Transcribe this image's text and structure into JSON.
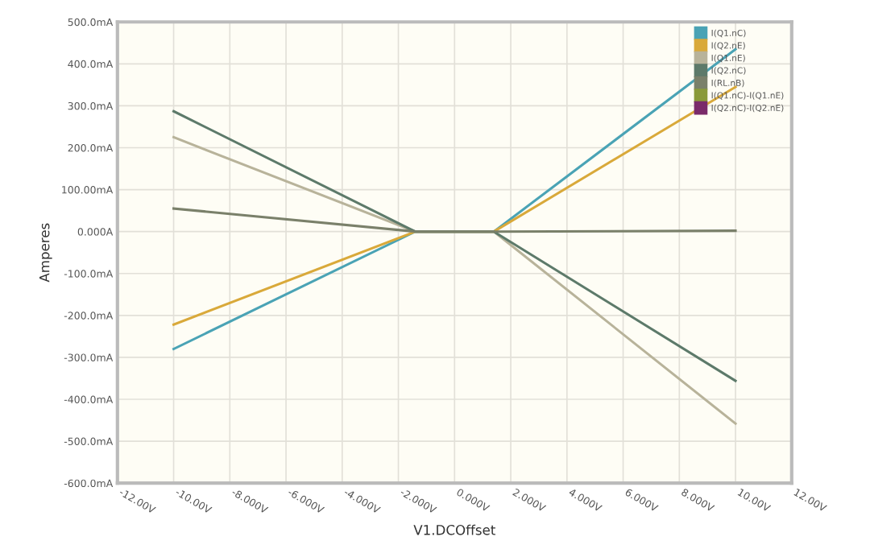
{
  "chart_data": {
    "type": "line",
    "xlabel": "V1.DCOffset",
    "ylabel": "Amperes",
    "x": [
      -10,
      -1.4,
      1.4,
      10
    ],
    "xlim": [
      -12,
      12
    ],
    "xticks": [
      {
        "value": -12,
        "label": "-12.00V"
      },
      {
        "value": -10,
        "label": "-10.00V"
      },
      {
        "value": -8,
        "label": "-8.000V"
      },
      {
        "value": -6,
        "label": "-6.000V"
      },
      {
        "value": -4,
        "label": "-4.000V"
      },
      {
        "value": -2,
        "label": "-2.000V"
      },
      {
        "value": 0,
        "label": "0.000V"
      },
      {
        "value": 2,
        "label": "2.000V"
      },
      {
        "value": 4,
        "label": "4.000V"
      },
      {
        "value": 6,
        "label": "6.000V"
      },
      {
        "value": 8,
        "label": "8.000V"
      },
      {
        "value": 10,
        "label": "10.00V"
      },
      {
        "value": 12,
        "label": "12.00V"
      }
    ],
    "ylim": [
      -600,
      500
    ],
    "yticks": [
      {
        "value": -600,
        "label": "-600.0mA"
      },
      {
        "value": -500,
        "label": "-500.0mA"
      },
      {
        "value": -400,
        "label": "-400.0mA"
      },
      {
        "value": -300,
        "label": "-300.0mA"
      },
      {
        "value": -200,
        "label": "-200.0mA"
      },
      {
        "value": -100,
        "label": "-100.0mA"
      },
      {
        "value": 0,
        "label": "0.000A"
      },
      {
        "value": 100,
        "label": "100.00mA"
      },
      {
        "value": 200,
        "label": "200.0mA"
      },
      {
        "value": 300,
        "label": "300.0mA"
      },
      {
        "value": 400,
        "label": "400.0mA"
      },
      {
        "value": 500,
        "label": "500.0mA"
      }
    ],
    "grid": true,
    "legend": "top right",
    "marker": "none",
    "line_style": "solid",
    "series": [
      {
        "name": "I(Q1.nC)",
        "color": "#4aa3b5",
        "values": [
          -280,
          0,
          0,
          435
        ]
      },
      {
        "name": "I(Q2.nE)",
        "color": "#d9a93a",
        "values": [
          -222,
          0,
          0,
          345
        ]
      },
      {
        "name": "I(Q1.nE)",
        "color": "#b8b39a",
        "values": [
          225,
          0,
          0,
          -458
        ]
      },
      {
        "name": "I(Q2.nC)",
        "color": "#5d7a6a",
        "values": [
          287,
          0,
          0,
          -356
        ]
      },
      {
        "name": "I(RL.nB)",
        "color": "#7a806a",
        "values": [
          55,
          0,
          0,
          2
        ]
      },
      {
        "name": "I(Q1.nC)-I(Q1.nE)",
        "color": "#8a9a3a",
        "values": [
          null,
          null,
          null,
          null
        ]
      },
      {
        "name": "I(Q2.nC)-I(Q2.nE)",
        "color": "#7a2a6a",
        "values": [
          null,
          null,
          null,
          null
        ]
      }
    ]
  }
}
